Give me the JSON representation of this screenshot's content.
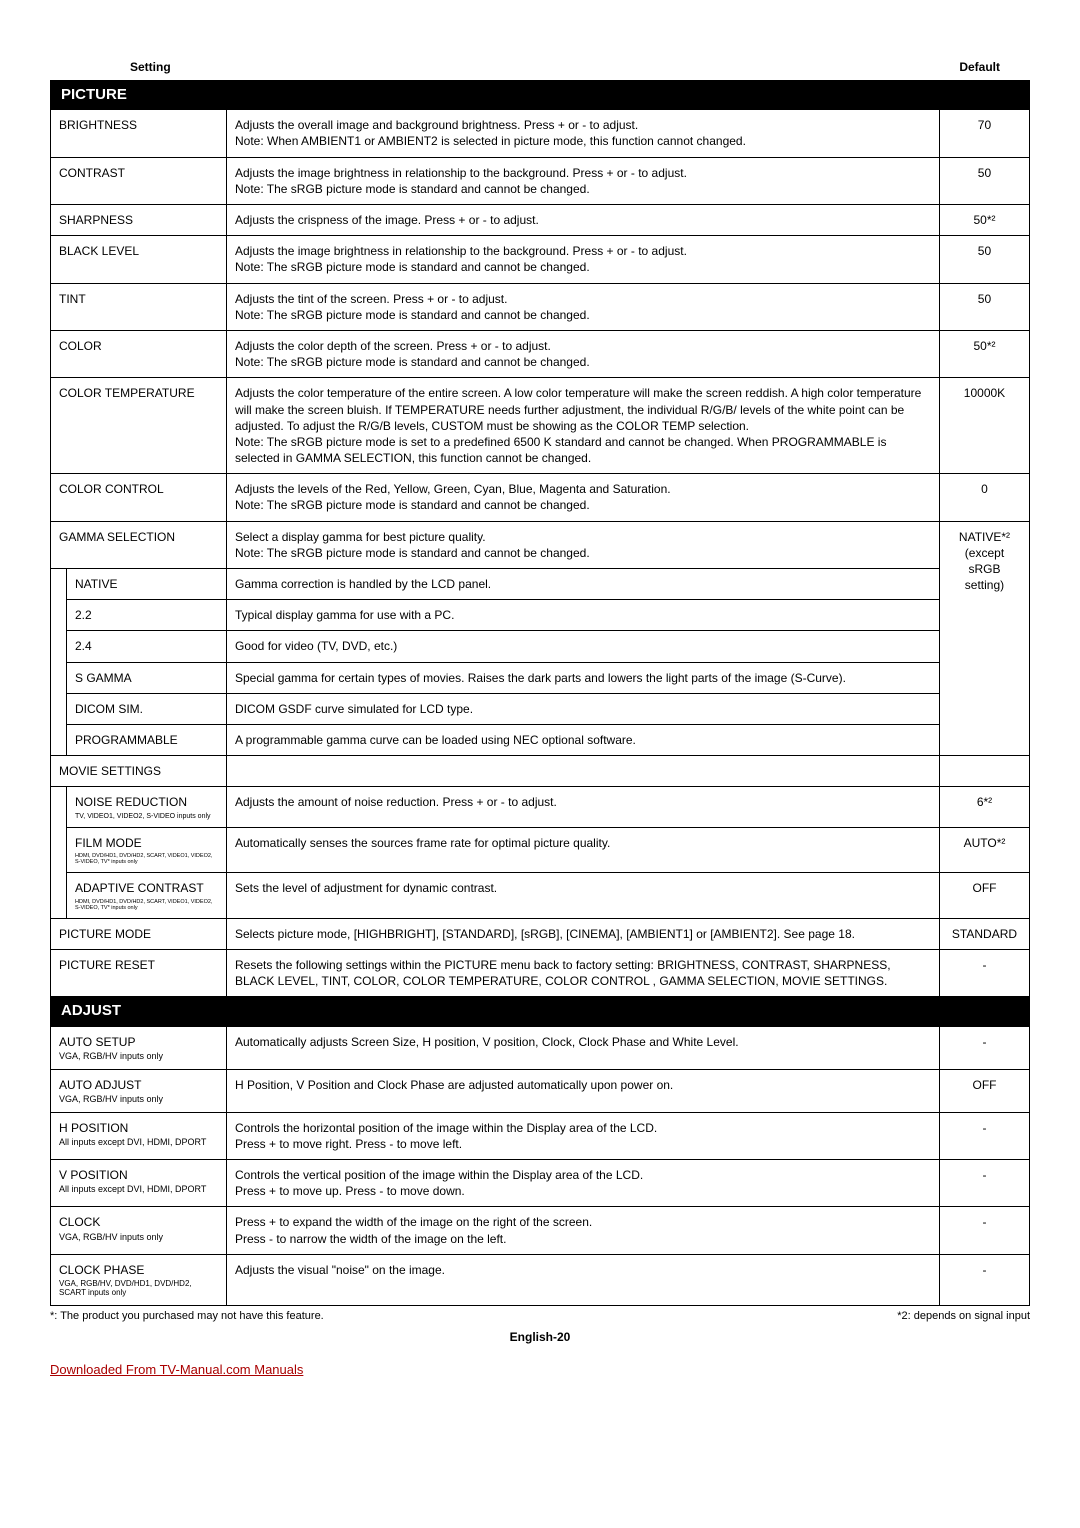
{
  "header": {
    "setting": "Setting",
    "default": "Default"
  },
  "sections": {
    "picture": "PICTURE",
    "adjust": "ADJUST"
  },
  "rows": {
    "brightness": {
      "name": "BRIGHTNESS",
      "desc": "Adjusts the overall image and background brightness. Press + or - to adjust.\nNote: When AMBIENT1 or AMBIENT2 is selected in picture mode, this function cannot changed.",
      "default": "70"
    },
    "contrast": {
      "name": "CONTRAST",
      "desc": "Adjusts the image brightness in relationship to the background. Press + or - to adjust.\nNote: The sRGB picture mode is standard and cannot be changed.",
      "default": "50"
    },
    "sharpness": {
      "name": "SHARPNESS",
      "desc": "Adjusts the crispness of the image. Press + or - to adjust.",
      "default": "50*²"
    },
    "blacklevel": {
      "name": "BLACK LEVEL",
      "desc": "Adjusts the image brightness in relationship to the background. Press + or - to adjust.\nNote: The sRGB picture mode is standard and cannot be changed.",
      "default": "50"
    },
    "tint": {
      "name": "TINT",
      "desc": "Adjusts the tint of the screen. Press + or - to adjust.\nNote: The sRGB picture mode is standard and cannot be changed.",
      "default": "50"
    },
    "color": {
      "name": "COLOR",
      "desc": "Adjusts the color depth of the screen. Press + or - to adjust.\nNote: The sRGB picture mode is standard and cannot be changed.",
      "default": "50*²"
    },
    "colortemp": {
      "name": "COLOR TEMPERATURE",
      "desc": "Adjusts the color temperature of the entire screen. A low color temperature will make the screen reddish. A high color temperature will make the screen bluish. If TEMPERATURE needs further adjustment, the individual R/G/B/ levels of the white point can be adjusted. To adjust the R/G/B levels, CUSTOM must be showing as the COLOR TEMP selection.\nNote: The sRGB picture mode is set to a predefined 6500 K standard and cannot be changed. When PROGRAMMABLE is selected in GAMMA SELECTION, this function cannot be changed.",
      "default": "10000K"
    },
    "colorcontrol": {
      "name": "COLOR CONTROL",
      "desc": "Adjusts the levels of the Red, Yellow, Green, Cyan, Blue, Magenta and Saturation.\nNote: The sRGB picture mode is standard and cannot be changed.",
      "default": "0"
    },
    "gammasel": {
      "name": "GAMMA SELECTION",
      "desc": "Select a display gamma for best picture quality.\nNote: The sRGB picture mode is standard and cannot be changed.",
      "default": "NATIVE*²\n(except sRGB setting)"
    },
    "native": {
      "name": "NATIVE",
      "desc": "Gamma correction is handled by the LCD panel."
    },
    "g22": {
      "name": "2.2",
      "desc": "Typical display gamma for use with a PC."
    },
    "g24": {
      "name": "2.4",
      "desc": "Good for video (TV, DVD, etc.)"
    },
    "sgamma": {
      "name": "S GAMMA",
      "desc": "Special gamma for certain types of movies. Raises the dark parts and lowers the light parts of the image (S-Curve)."
    },
    "dicom": {
      "name": "DICOM SIM.",
      "desc": "DICOM GSDF curve simulated for LCD type."
    },
    "prog": {
      "name": "PROGRAMMABLE",
      "desc": "A programmable gamma curve can be loaded using NEC optional software."
    },
    "moviesettings": {
      "name": "MOVIE SETTINGS",
      "default": ""
    },
    "noisered": {
      "name": "NOISE REDUCTION",
      "note": "TV, VIDEO1, VIDEO2, S-VIDEO inputs only",
      "desc": "Adjusts the amount of noise reduction. Press + or - to adjust.",
      "default": "6*²"
    },
    "filmmode": {
      "name": "FILM MODE",
      "note": "HDMI, DVD/HD1, DVD/HD2, SCART, VIDEO1, VIDEO2, S-VIDEO, TV* inputs only",
      "desc": "Automatically senses the sources frame rate for optimal picture quality.",
      "default": "AUTO*²"
    },
    "adaptive": {
      "name": "ADAPTIVE CONTRAST",
      "note": "HDMI, DVD/HD1, DVD/HD2, SCART, VIDEO1, VIDEO2, S-VIDEO, TV* inputs only",
      "desc": "Sets the level of adjustment for dynamic contrast.",
      "default": "OFF"
    },
    "picmode": {
      "name": "PICTURE MODE",
      "desc": "Selects picture mode, [HIGHBRIGHT], [STANDARD], [sRGB], [CINEMA], [AMBIENT1] or [AMBIENT2]. See page 18.",
      "default": "STANDARD"
    },
    "picreset": {
      "name": "PICTURE RESET",
      "desc": "Resets the following settings within the PICTURE menu back to factory setting: BRIGHTNESS, CONTRAST, SHARPNESS, BLACK LEVEL, TINT, COLOR, COLOR TEMPERATURE, COLOR CONTROL , GAMMA SELECTION, MOVIE SETTINGS.",
      "default": "-"
    },
    "autosetup": {
      "name": "AUTO SETUP",
      "note": "VGA, RGB/HV inputs only",
      "desc": "Automatically adjusts Screen Size, H position, V position, Clock, Clock Phase and White Level.",
      "default": "-"
    },
    "autoadjust": {
      "name": "AUTO ADJUST",
      "note": "VGA, RGB/HV inputs only",
      "desc": "H Position, V Position and Clock Phase are adjusted automatically upon power on.",
      "default": "OFF"
    },
    "hpos": {
      "name": "H POSITION",
      "note": "All inputs except DVI, HDMI, DPORT",
      "desc": "Controls the horizontal position of the image within the Display area of the LCD.\nPress + to move right. Press - to move left.",
      "default": "-"
    },
    "vpos": {
      "name": "V POSITION",
      "note": "All inputs except DVI, HDMI, DPORT",
      "desc": "Controls the vertical position of the image within the Display area of the LCD.\nPress + to move up. Press - to move down.",
      "default": "-"
    },
    "clock": {
      "name": "CLOCK",
      "note": "VGA, RGB/HV inputs only",
      "desc": "Press + to expand the width of the image on the right of the screen.\nPress - to narrow the width of the image on the left.",
      "default": "-"
    },
    "clockphase": {
      "name": "CLOCK PHASE",
      "note": "VGA, RGB/HV, DVD/HD1, DVD/HD2, SCART inputs only",
      "desc": "Adjusts the visual \"noise\" on the image.",
      "default": "-"
    }
  },
  "footnotes": {
    "left": "*: The product you purchased may not have this feature.",
    "right": "*2: depends on signal input"
  },
  "pagenum": "English-20",
  "download": "Downloaded From TV-Manual.com Manuals"
}
